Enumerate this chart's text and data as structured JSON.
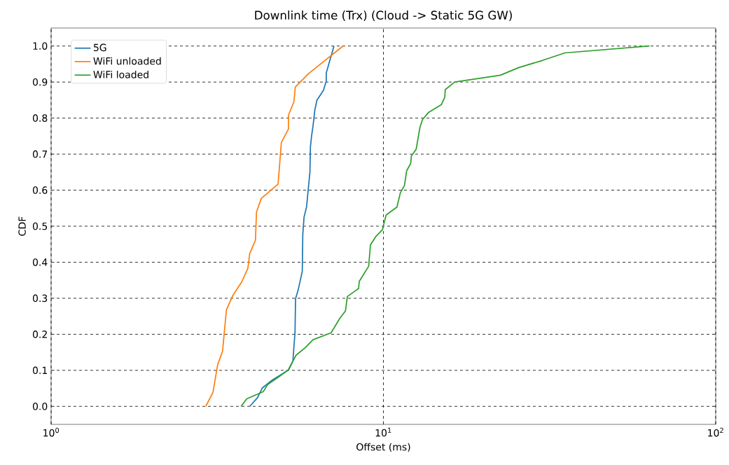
{
  "chart_data": {
    "type": "line",
    "title": "Downlink time (Trx) (Cloud -> Static 5G GW)",
    "xlabel": "Offset (ms)",
    "ylabel": "CDF",
    "log": "x",
    "grid": true,
    "legend": "top left",
    "xlim": [
      1,
      100
    ],
    "ylim": [
      -0.05,
      1.05
    ],
    "xticks": [
      {
        "value": 1,
        "label": "10$^{0}$"
      },
      {
        "value": 10,
        "label": "10$^{1}$"
      },
      {
        "value": 100,
        "label": "10$^{2}$"
      }
    ],
    "yticks": [
      {
        "value": 0,
        "label": "0.0"
      },
      0.1,
      0.2,
      0.3,
      0.4,
      0.5,
      0.6,
      0.7,
      0.8,
      0.9,
      {
        "value": 1,
        "label": "1.0"
      }
    ],
    "series": [
      {
        "name": "5G",
        "color": "#1f77b4",
        "x": [
          3.96,
          4.18,
          4.32,
          4.63,
          4.92,
          5.18,
          5.34,
          5.37,
          5.42,
          5.44,
          5.54,
          5.7,
          5.72,
          5.77,
          5.87,
          6.01,
          6.03,
          6.08,
          6.14,
          6.22,
          6.31,
          6.6,
          6.73,
          6.73,
          7.1
        ],
        "values": [
          0,
          0.024,
          0.051,
          0.073,
          0.088,
          0.101,
          0.125,
          0.156,
          0.205,
          0.299,
          0.323,
          0.375,
          0.477,
          0.525,
          0.553,
          0.65,
          0.72,
          0.751,
          0.778,
          0.823,
          0.85,
          0.877,
          0.903,
          0.925,
          1.0
        ]
      },
      {
        "name": "WiFi unloaded",
        "color": "#ff7f0e",
        "x": [
          2.92,
          3.07,
          3.17,
          3.28,
          3.37,
          3.52,
          3.75,
          3.91,
          3.96,
          4.12,
          4.15,
          4.29,
          4.82,
          4.93,
          5.18,
          5.18,
          5.38,
          5.43,
          5.96,
          7.56
        ],
        "values": [
          0,
          0.039,
          0.115,
          0.153,
          0.268,
          0.307,
          0.346,
          0.383,
          0.424,
          0.461,
          0.539,
          0.577,
          0.617,
          0.732,
          0.77,
          0.808,
          0.846,
          0.886,
          0.924,
          1.0
        ]
      },
      {
        "name": "WiFi loaded",
        "color": "#2ca02c",
        "x": [
          3.73,
          3.88,
          4.35,
          4.48,
          4.88,
          5.17,
          5.46,
          5.82,
          6.14,
          6.96,
          7.4,
          7.69,
          7.79,
          8.42,
          8.46,
          9.03,
          9.14,
          9.48,
          9.93,
          10.19,
          10.98,
          11.25,
          11.57,
          11.75,
          12.08,
          12.14,
          12.55,
          12.88,
          13.11,
          13.68,
          14.93,
          15.3,
          15.35,
          16.39,
          22.5,
          25.5,
          30.1,
          35.2,
          63.2
        ],
        "values": [
          0,
          0.021,
          0.041,
          0.06,
          0.084,
          0.101,
          0.142,
          0.163,
          0.185,
          0.204,
          0.245,
          0.265,
          0.305,
          0.327,
          0.347,
          0.389,
          0.448,
          0.471,
          0.49,
          0.531,
          0.553,
          0.593,
          0.613,
          0.654,
          0.674,
          0.695,
          0.714,
          0.774,
          0.796,
          0.816,
          0.837,
          0.858,
          0.879,
          0.9,
          0.919,
          0.94,
          0.96,
          0.981,
          1.0
        ]
      }
    ]
  }
}
